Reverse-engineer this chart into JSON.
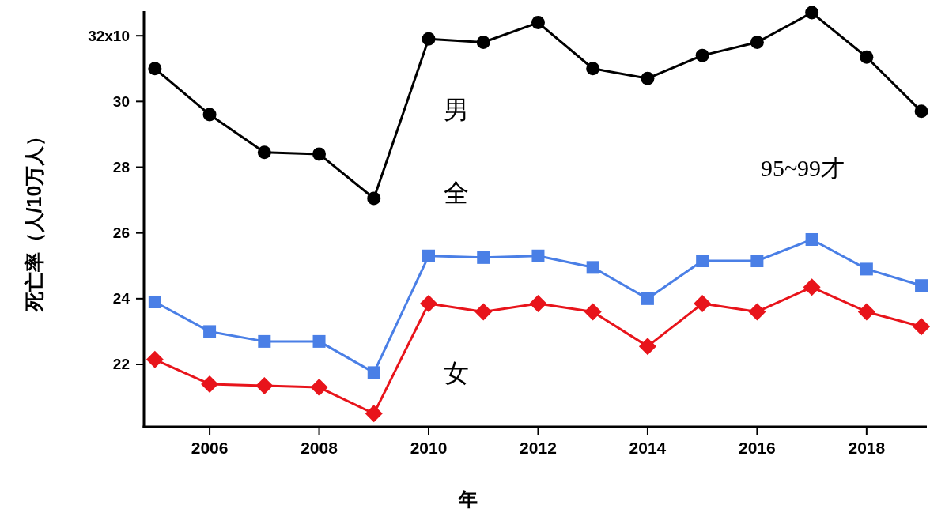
{
  "chart_data": {
    "type": "line",
    "xlabel": "年",
    "ylabel": "死亡率（人/10万人）",
    "x": [
      2005,
      2006,
      2007,
      2008,
      2009,
      2010,
      2011,
      2012,
      2013,
      2014,
      2015,
      2016,
      2017,
      2018,
      2019
    ],
    "series": [
      {
        "name": "男",
        "color": "#000000",
        "marker": "circle",
        "values": [
          31.0,
          29.6,
          28.45,
          28.4,
          27.05,
          31.9,
          31.8,
          32.4,
          31.0,
          30.7,
          31.4,
          31.8,
          32.7,
          31.35,
          29.7
        ]
      },
      {
        "name": "全",
        "color": "#4a7fe6",
        "marker": "square",
        "values": [
          23.9,
          23.0,
          22.7,
          22.7,
          21.75,
          25.3,
          25.25,
          25.3,
          24.95,
          24.0,
          25.15,
          25.15,
          25.8,
          24.9,
          24.4
        ]
      },
      {
        "name": "女",
        "color": "#e8141b",
        "marker": "diamond",
        "values": [
          22.15,
          21.4,
          21.35,
          21.3,
          20.5,
          23.85,
          23.6,
          23.85,
          23.6,
          22.55,
          23.85,
          23.6,
          24.35,
          23.6,
          23.15
        ]
      }
    ],
    "xlim": [
      2004.8,
      2019.1
    ],
    "ylim": [
      20.1,
      32.75
    ],
    "xticks": [
      2006,
      2008,
      2010,
      2012,
      2014,
      2016,
      2018
    ],
    "yticks": [
      22,
      24,
      26,
      28,
      30,
      {
        "value": 32,
        "label": "32x10"
      }
    ],
    "annotations": [
      "95~99才"
    ],
    "grid": false,
    "legend": false
  }
}
